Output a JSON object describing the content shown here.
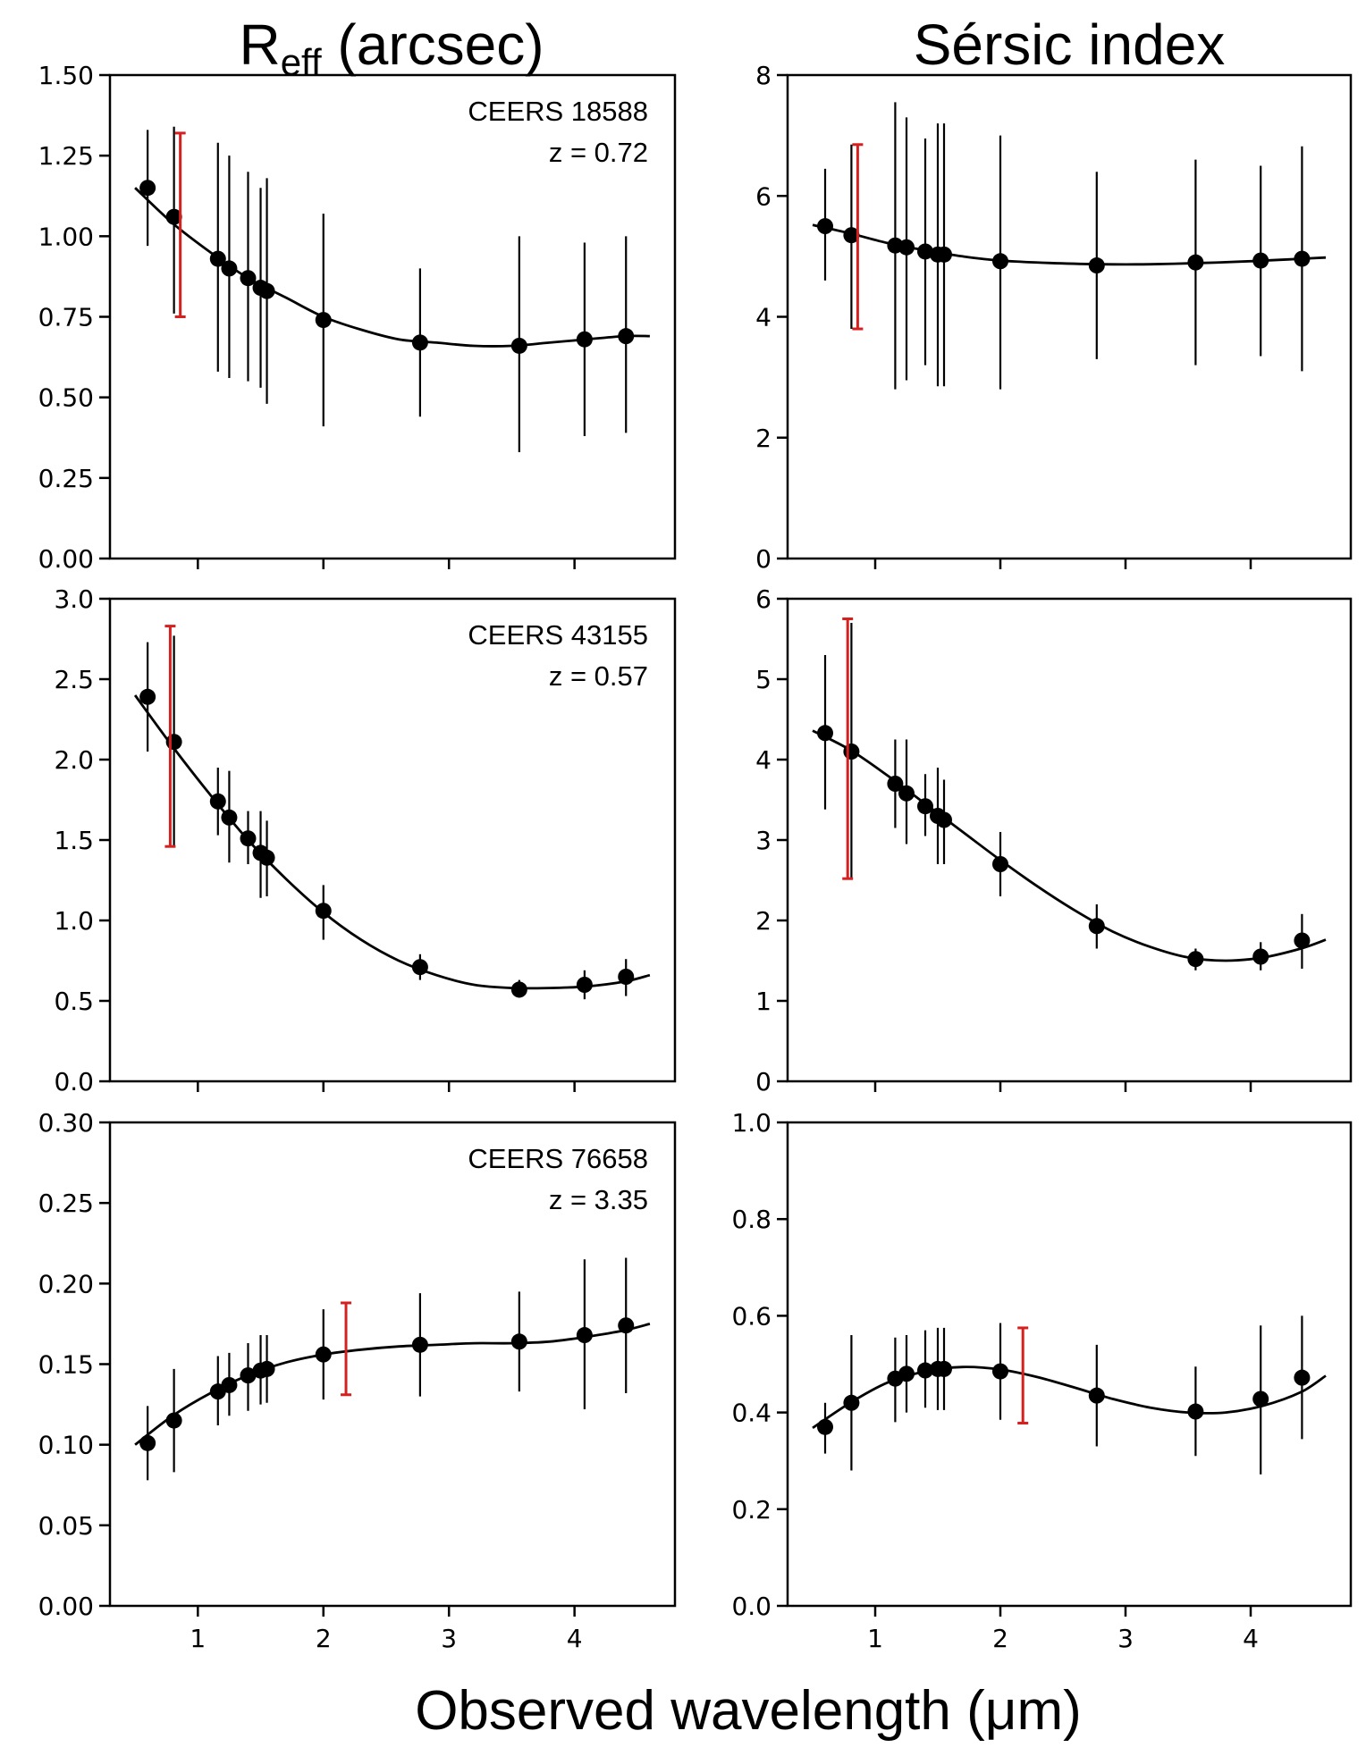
{
  "figure": {
    "col_titles": [
      {
        "main": "R",
        "sub": "eff",
        "rest": " (arcsec)"
      },
      {
        "main": "Sérsic index",
        "sub": "",
        "rest": ""
      }
    ],
    "xlabel": "Observed wavelength (μm)"
  },
  "chart_data": [
    {
      "type": "scatter",
      "row": 0,
      "col": 0,
      "annotation": [
        "CEERS 18588",
        "z = 0.72"
      ],
      "xlim": [
        0.3,
        4.8
      ],
      "xticks": [
        1,
        2,
        3,
        4
      ],
      "show_xtick_labels": false,
      "ylim": [
        0,
        1.5
      ],
      "yticks": [
        "0.00",
        "0.25",
        "0.50",
        "0.75",
        "1.00",
        "1.25",
        "1.50"
      ],
      "points": [
        {
          "x": 0.6,
          "y": 1.15,
          "lo": 0.97,
          "hi": 1.33
        },
        {
          "x": 0.81,
          "y": 1.06,
          "lo": 0.76,
          "hi": 1.34
        },
        {
          "x": 1.16,
          "y": 0.93,
          "lo": 0.58,
          "hi": 1.29
        },
        {
          "x": 1.25,
          "y": 0.9,
          "lo": 0.56,
          "hi": 1.25
        },
        {
          "x": 1.4,
          "y": 0.87,
          "lo": 0.55,
          "hi": 1.2
        },
        {
          "x": 1.5,
          "y": 0.84,
          "lo": 0.53,
          "hi": 1.15
        },
        {
          "x": 1.55,
          "y": 0.83,
          "lo": 0.48,
          "hi": 1.18
        },
        {
          "x": 2.0,
          "y": 0.74,
          "lo": 0.41,
          "hi": 1.07
        },
        {
          "x": 2.77,
          "y": 0.67,
          "lo": 0.44,
          "hi": 0.9
        },
        {
          "x": 3.56,
          "y": 0.66,
          "lo": 0.33,
          "hi": 1.0
        },
        {
          "x": 4.08,
          "y": 0.68,
          "lo": 0.38,
          "hi": 0.98
        },
        {
          "x": 4.41,
          "y": 0.69,
          "lo": 0.39,
          "hi": 1.0
        }
      ],
      "red_bar": {
        "x": 0.86,
        "lo": 0.75,
        "hi": 1.32
      },
      "curve": [
        [
          0.5,
          1.15
        ],
        [
          0.8,
          1.04
        ],
        [
          1.1,
          0.95
        ],
        [
          1.4,
          0.87
        ],
        [
          1.7,
          0.81
        ],
        [
          2.0,
          0.75
        ],
        [
          2.3,
          0.71
        ],
        [
          2.6,
          0.68
        ],
        [
          2.9,
          0.67
        ],
        [
          3.2,
          0.66
        ],
        [
          3.5,
          0.66
        ],
        [
          3.8,
          0.67
        ],
        [
          4.1,
          0.68
        ],
        [
          4.4,
          0.69
        ],
        [
          4.6,
          0.69
        ]
      ]
    },
    {
      "type": "scatter",
      "row": 0,
      "col": 1,
      "annotation": [],
      "xlim": [
        0.3,
        4.8
      ],
      "xticks": [
        1,
        2,
        3,
        4
      ],
      "show_xtick_labels": false,
      "ylim": [
        0,
        8
      ],
      "yticks": [
        "0",
        "2",
        "4",
        "6",
        "8"
      ],
      "points": [
        {
          "x": 0.6,
          "y": 5.5,
          "lo": 4.6,
          "hi": 6.45
        },
        {
          "x": 0.81,
          "y": 5.35,
          "lo": 3.8,
          "hi": 6.85
        },
        {
          "x": 1.16,
          "y": 5.18,
          "lo": 2.8,
          "hi": 7.55
        },
        {
          "x": 1.25,
          "y": 5.15,
          "lo": 2.95,
          "hi": 7.3
        },
        {
          "x": 1.4,
          "y": 5.08,
          "lo": 3.2,
          "hi": 6.95
        },
        {
          "x": 1.5,
          "y": 5.03,
          "lo": 2.85,
          "hi": 7.2
        },
        {
          "x": 1.55,
          "y": 5.03,
          "lo": 2.85,
          "hi": 7.2
        },
        {
          "x": 2.0,
          "y": 4.92,
          "lo": 2.8,
          "hi": 7.0
        },
        {
          "x": 2.77,
          "y": 4.85,
          "lo": 3.3,
          "hi": 6.4
        },
        {
          "x": 3.56,
          "y": 4.9,
          "lo": 3.2,
          "hi": 6.6
        },
        {
          "x": 4.08,
          "y": 4.93,
          "lo": 3.35,
          "hi": 6.5
        },
        {
          "x": 4.41,
          "y": 4.96,
          "lo": 3.1,
          "hi": 6.82
        }
      ],
      "red_bar": {
        "x": 0.86,
        "lo": 3.8,
        "hi": 6.85
      },
      "curve": [
        [
          0.5,
          5.52
        ],
        [
          0.8,
          5.38
        ],
        [
          1.1,
          5.22
        ],
        [
          1.4,
          5.1
        ],
        [
          1.7,
          5.0
        ],
        [
          2.0,
          4.93
        ],
        [
          2.4,
          4.89
        ],
        [
          2.8,
          4.87
        ],
        [
          3.2,
          4.87
        ],
        [
          3.6,
          4.89
        ],
        [
          4.0,
          4.92
        ],
        [
          4.3,
          4.95
        ],
        [
          4.6,
          4.98
        ]
      ]
    },
    {
      "type": "scatter",
      "row": 1,
      "col": 0,
      "annotation": [
        "CEERS 43155",
        "z = 0.57"
      ],
      "xlim": [
        0.3,
        4.8
      ],
      "xticks": [
        1,
        2,
        3,
        4
      ],
      "show_xtick_labels": false,
      "ylim": [
        0,
        3.0
      ],
      "yticks": [
        "0.0",
        "0.5",
        "1.0",
        "1.5",
        "2.0",
        "2.5",
        "3.0"
      ],
      "points": [
        {
          "x": 0.6,
          "y": 2.39,
          "lo": 2.05,
          "hi": 2.73
        },
        {
          "x": 0.81,
          "y": 2.11,
          "lo": 1.46,
          "hi": 2.77
        },
        {
          "x": 1.16,
          "y": 1.74,
          "lo": 1.53,
          "hi": 1.95
        },
        {
          "x": 1.25,
          "y": 1.64,
          "lo": 1.36,
          "hi": 1.93
        },
        {
          "x": 1.4,
          "y": 1.51,
          "lo": 1.35,
          "hi": 1.68
        },
        {
          "x": 1.5,
          "y": 1.42,
          "lo": 1.14,
          "hi": 1.68
        },
        {
          "x": 1.55,
          "y": 1.39,
          "lo": 1.15,
          "hi": 1.62
        },
        {
          "x": 2.0,
          "y": 1.06,
          "lo": 0.88,
          "hi": 1.22
        },
        {
          "x": 2.77,
          "y": 0.71,
          "lo": 0.63,
          "hi": 0.79
        },
        {
          "x": 3.56,
          "y": 0.57,
          "lo": 0.52,
          "hi": 0.63
        },
        {
          "x": 4.08,
          "y": 0.6,
          "lo": 0.51,
          "hi": 0.69
        },
        {
          "x": 4.41,
          "y": 0.65,
          "lo": 0.53,
          "hi": 0.76
        }
      ],
      "red_bar": {
        "x": 0.78,
        "lo": 1.46,
        "hi": 2.83
      },
      "curve": [
        [
          0.5,
          2.4
        ],
        [
          0.8,
          2.08
        ],
        [
          1.1,
          1.78
        ],
        [
          1.4,
          1.5
        ],
        [
          1.7,
          1.26
        ],
        [
          2.0,
          1.05
        ],
        [
          2.3,
          0.88
        ],
        [
          2.6,
          0.75
        ],
        [
          2.9,
          0.66
        ],
        [
          3.2,
          0.6
        ],
        [
          3.5,
          0.58
        ],
        [
          3.8,
          0.58
        ],
        [
          4.1,
          0.59
        ],
        [
          4.4,
          0.62
        ],
        [
          4.6,
          0.66
        ]
      ]
    },
    {
      "type": "scatter",
      "row": 1,
      "col": 1,
      "annotation": [],
      "xlim": [
        0.3,
        4.8
      ],
      "xticks": [
        1,
        2,
        3,
        4
      ],
      "show_xtick_labels": false,
      "ylim": [
        0,
        6
      ],
      "yticks": [
        "0",
        "1",
        "2",
        "3",
        "4",
        "5",
        "6"
      ],
      "points": [
        {
          "x": 0.6,
          "y": 4.33,
          "lo": 3.38,
          "hi": 5.3
        },
        {
          "x": 0.81,
          "y": 4.1,
          "lo": 2.52,
          "hi": 5.7
        },
        {
          "x": 1.16,
          "y": 3.7,
          "lo": 3.15,
          "hi": 4.25
        },
        {
          "x": 1.25,
          "y": 3.58,
          "lo": 2.95,
          "hi": 4.25
        },
        {
          "x": 1.4,
          "y": 3.42,
          "lo": 3.05,
          "hi": 3.82
        },
        {
          "x": 1.5,
          "y": 3.3,
          "lo": 2.7,
          "hi": 3.9
        },
        {
          "x": 1.55,
          "y": 3.25,
          "lo": 2.7,
          "hi": 3.75
        },
        {
          "x": 2.0,
          "y": 2.7,
          "lo": 2.3,
          "hi": 3.1
        },
        {
          "x": 2.77,
          "y": 1.93,
          "lo": 1.65,
          "hi": 2.2
        },
        {
          "x": 3.56,
          "y": 1.52,
          "lo": 1.38,
          "hi": 1.65
        },
        {
          "x": 4.08,
          "y": 1.55,
          "lo": 1.38,
          "hi": 1.73
        },
        {
          "x": 4.41,
          "y": 1.75,
          "lo": 1.4,
          "hi": 2.08
        }
      ],
      "red_bar": {
        "x": 0.78,
        "lo": 2.52,
        "hi": 5.75
      },
      "curve": [
        [
          0.5,
          4.36
        ],
        [
          0.8,
          4.12
        ],
        [
          1.1,
          3.8
        ],
        [
          1.4,
          3.45
        ],
        [
          1.7,
          3.1
        ],
        [
          2.0,
          2.75
        ],
        [
          2.3,
          2.42
        ],
        [
          2.6,
          2.12
        ],
        [
          2.9,
          1.86
        ],
        [
          3.2,
          1.67
        ],
        [
          3.5,
          1.54
        ],
        [
          3.8,
          1.5
        ],
        [
          4.1,
          1.54
        ],
        [
          4.4,
          1.65
        ],
        [
          4.6,
          1.76
        ]
      ]
    },
    {
      "type": "scatter",
      "row": 2,
      "col": 0,
      "annotation": [
        "CEERS 76658",
        "z = 3.35"
      ],
      "xlim": [
        0.3,
        4.8
      ],
      "xticks": [
        1,
        2,
        3,
        4
      ],
      "show_xtick_labels": true,
      "ylim": [
        0,
        0.3
      ],
      "yticks": [
        "0.00",
        "0.05",
        "0.10",
        "0.15",
        "0.20",
        "0.25",
        "0.30"
      ],
      "points": [
        {
          "x": 0.6,
          "y": 0.101,
          "lo": 0.078,
          "hi": 0.124
        },
        {
          "x": 0.81,
          "y": 0.115,
          "lo": 0.083,
          "hi": 0.147
        },
        {
          "x": 1.16,
          "y": 0.133,
          "lo": 0.112,
          "hi": 0.155
        },
        {
          "x": 1.25,
          "y": 0.137,
          "lo": 0.118,
          "hi": 0.157
        },
        {
          "x": 1.4,
          "y": 0.143,
          "lo": 0.121,
          "hi": 0.163
        },
        {
          "x": 1.5,
          "y": 0.146,
          "lo": 0.125,
          "hi": 0.168
        },
        {
          "x": 1.55,
          "y": 0.147,
          "lo": 0.126,
          "hi": 0.168
        },
        {
          "x": 2.0,
          "y": 0.156,
          "lo": 0.128,
          "hi": 0.184
        },
        {
          "x": 2.77,
          "y": 0.162,
          "lo": 0.13,
          "hi": 0.194
        },
        {
          "x": 3.56,
          "y": 0.164,
          "lo": 0.133,
          "hi": 0.195
        },
        {
          "x": 4.08,
          "y": 0.168,
          "lo": 0.122,
          "hi": 0.215
        },
        {
          "x": 4.41,
          "y": 0.174,
          "lo": 0.132,
          "hi": 0.216
        }
      ],
      "red_bar": {
        "x": 2.18,
        "lo": 0.131,
        "hi": 0.188
      },
      "curve": [
        [
          0.5,
          0.1
        ],
        [
          0.8,
          0.118
        ],
        [
          1.1,
          0.132
        ],
        [
          1.4,
          0.143
        ],
        [
          1.7,
          0.151
        ],
        [
          2.0,
          0.156
        ],
        [
          2.3,
          0.159
        ],
        [
          2.6,
          0.161
        ],
        [
          2.9,
          0.162
        ],
        [
          3.2,
          0.163
        ],
        [
          3.5,
          0.163
        ],
        [
          3.8,
          0.164
        ],
        [
          4.1,
          0.167
        ],
        [
          4.4,
          0.171
        ],
        [
          4.6,
          0.175
        ]
      ]
    },
    {
      "type": "scatter",
      "row": 2,
      "col": 1,
      "annotation": [],
      "xlim": [
        0.3,
        4.8
      ],
      "xticks": [
        1,
        2,
        3,
        4
      ],
      "show_xtick_labels": true,
      "ylim": [
        0,
        1.0
      ],
      "yticks": [
        "0.0",
        "0.2",
        "0.4",
        "0.6",
        "0.8",
        "1.0"
      ],
      "points": [
        {
          "x": 0.6,
          "y": 0.37,
          "lo": 0.315,
          "hi": 0.42
        },
        {
          "x": 0.81,
          "y": 0.42,
          "lo": 0.28,
          "hi": 0.56
        },
        {
          "x": 1.16,
          "y": 0.47,
          "lo": 0.38,
          "hi": 0.555
        },
        {
          "x": 1.25,
          "y": 0.48,
          "lo": 0.4,
          "hi": 0.56
        },
        {
          "x": 1.4,
          "y": 0.487,
          "lo": 0.41,
          "hi": 0.57
        },
        {
          "x": 1.5,
          "y": 0.49,
          "lo": 0.405,
          "hi": 0.575
        },
        {
          "x": 1.55,
          "y": 0.49,
          "lo": 0.405,
          "hi": 0.575
        },
        {
          "x": 2.0,
          "y": 0.485,
          "lo": 0.385,
          "hi": 0.585
        },
        {
          "x": 2.77,
          "y": 0.435,
          "lo": 0.33,
          "hi": 0.54
        },
        {
          "x": 3.56,
          "y": 0.402,
          "lo": 0.31,
          "hi": 0.495
        },
        {
          "x": 4.08,
          "y": 0.428,
          "lo": 0.272,
          "hi": 0.58
        },
        {
          "x": 4.41,
          "y": 0.472,
          "lo": 0.345,
          "hi": 0.6
        }
      ],
      "red_bar": {
        "x": 2.18,
        "lo": 0.378,
        "hi": 0.575
      },
      "curve": [
        [
          0.5,
          0.368
        ],
        [
          0.8,
          0.42
        ],
        [
          1.1,
          0.462
        ],
        [
          1.4,
          0.485
        ],
        [
          1.7,
          0.494
        ],
        [
          2.0,
          0.489
        ],
        [
          2.3,
          0.473
        ],
        [
          2.6,
          0.451
        ],
        [
          2.9,
          0.428
        ],
        [
          3.2,
          0.41
        ],
        [
          3.5,
          0.4
        ],
        [
          3.8,
          0.4
        ],
        [
          4.1,
          0.414
        ],
        [
          4.4,
          0.442
        ],
        [
          4.6,
          0.476
        ]
      ]
    }
  ]
}
